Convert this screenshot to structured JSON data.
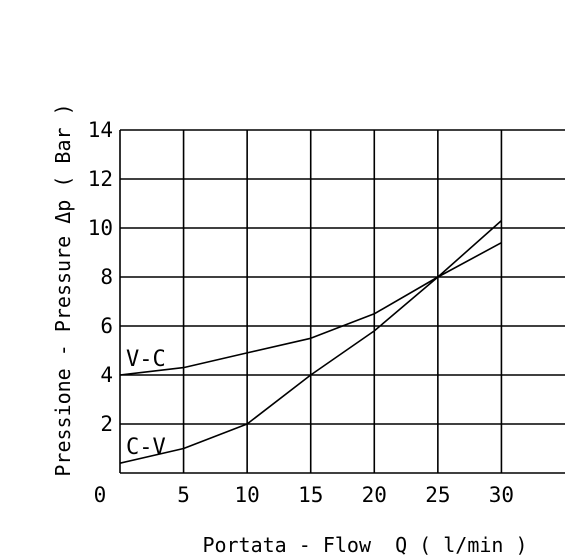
{
  "chart_data": {
    "type": "line",
    "title": "",
    "xlabel": "Portata - Flow  Q ( l/min )",
    "ylabel": "Pressione - Pressure Δp ( Bar )",
    "xlim": [
      0,
      35
    ],
    "ylim": [
      0,
      14
    ],
    "x_ticks": [
      5,
      10,
      15,
      20,
      25,
      30
    ],
    "y_ticks": [
      2,
      4,
      6,
      8,
      10,
      12,
      14
    ],
    "x_tick_labels": [
      "5",
      "10",
      "15",
      "20",
      "25",
      "30"
    ],
    "y_tick_labels": [
      "2",
      "4",
      "6",
      "8",
      "10",
      "12",
      "14"
    ],
    "origin_label": "0",
    "grid": true,
    "series": [
      {
        "name": "V-C",
        "x": [
          0,
          5,
          10,
          15,
          20,
          25,
          30
        ],
        "values": [
          4.0,
          4.3,
          4.9,
          5.5,
          6.5,
          8.0,
          9.4
        ]
      },
      {
        "name": "C-V",
        "x": [
          0,
          5,
          10,
          15,
          20,
          25,
          30
        ],
        "values": [
          0.4,
          1.0,
          2.0,
          4.0,
          5.8,
          8.0,
          10.3
        ]
      }
    ]
  }
}
